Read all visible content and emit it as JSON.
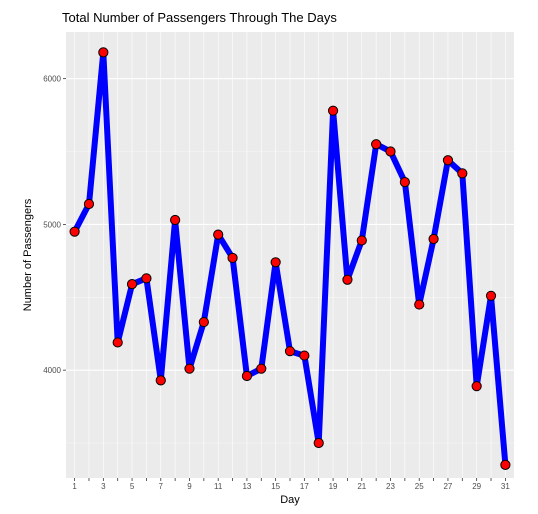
{
  "chart_data": {
    "type": "line",
    "title": "Total Number of Passengers Through The Days",
    "xlabel": "Day",
    "ylabel": "Number of Passengers",
    "x": [
      1,
      2,
      3,
      4,
      5,
      6,
      7,
      8,
      9,
      10,
      11,
      12,
      13,
      14,
      15,
      16,
      17,
      18,
      19,
      20,
      21,
      22,
      23,
      24,
      25,
      26,
      27,
      28,
      29,
      30,
      31
    ],
    "values": [
      4950,
      5140,
      6180,
      4190,
      4590,
      4630,
      3930,
      5030,
      4010,
      4330,
      4930,
      4770,
      3960,
      4010,
      4740,
      4130,
      4100,
      3500,
      5780,
      4620,
      4890,
      5550,
      5500,
      5290,
      4450,
      4900,
      5440,
      5350,
      3890,
      4510,
      3350
    ],
    "x_ticks": [
      1,
      3,
      5,
      7,
      9,
      11,
      13,
      15,
      17,
      19,
      21,
      23,
      25,
      27,
      29,
      31
    ],
    "y_ticks": [
      4000,
      5000,
      6000
    ],
    "xlim": [
      0.4,
      31.6
    ],
    "ylim": [
      3260,
      6320
    ],
    "grid": true,
    "line_color": "#0000ff",
    "point_fill": "#ff0000",
    "point_stroke": "#000000",
    "panel_color": "#ebebeb"
  }
}
